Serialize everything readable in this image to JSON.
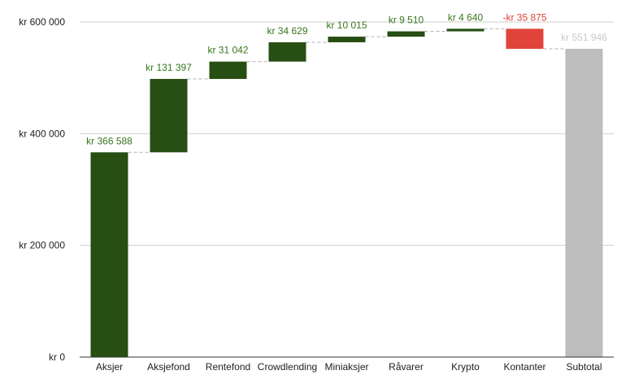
{
  "chart_data": {
    "type": "waterfall",
    "title": "",
    "xlabel": "",
    "ylabel": "",
    "ylim": [
      0,
      600000
    ],
    "grid": true,
    "legend": "none",
    "y_ticks": [
      {
        "value": 0,
        "label": "kr   0"
      },
      {
        "value": 200000,
        "label": "kr  200 000"
      },
      {
        "value": 400000,
        "label": "kr  400 000"
      },
      {
        "value": 600000,
        "label": "kr  600 000"
      }
    ],
    "categories": [
      "Aksjer",
      "Aksjefond",
      "Rentefond",
      "Crowdlending",
      "Miniaksjer",
      "Råvarer",
      "Krypto",
      "Kontanter",
      "Subtotal"
    ],
    "values": [
      366588,
      131397,
      31042,
      34629,
      10015,
      9510,
      4640,
      -35875,
      551946
    ],
    "kinds": [
      "increase",
      "increase",
      "increase",
      "increase",
      "increase",
      "increase",
      "increase",
      "decrease",
      "total"
    ],
    "data_labels": [
      "kr  366 588",
      "kr  131 397",
      "kr  31 042",
      "kr  34 629",
      "kr  10 015",
      "kr  9 510",
      "kr  4 640",
      "-kr  35 875",
      "kr  551 946"
    ],
    "colors": {
      "increase": "#274e13",
      "decrease": "#e0443a",
      "total": "#bdbdbd",
      "increase_label": "#38761d",
      "decrease_label": "#e0443a",
      "total_label": "#c8c8c8",
      "grid": "#d0d0d0",
      "axis": "#333333",
      "connector": "#b0b0b0"
    }
  }
}
